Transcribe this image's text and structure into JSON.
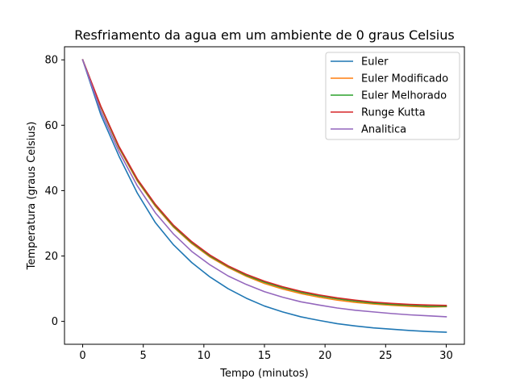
{
  "chart_data": {
    "type": "line",
    "title": "Resfriamento da agua em um ambiente de 0 graus Celsius",
    "xlabel": "Tempo (minutos)",
    "ylabel": "Temperatura (graus Celsius)",
    "xlim": [
      -1.5,
      31.5
    ],
    "ylim": [
      -7,
      84
    ],
    "xticks": [
      0,
      5,
      10,
      15,
      20,
      25,
      30
    ],
    "yticks": [
      0,
      20,
      40,
      60,
      80
    ],
    "grid": false,
    "legend_position": "top-right",
    "x": [
      0,
      1.5,
      3,
      4.5,
      6,
      7.5,
      9,
      10.5,
      12,
      13.5,
      15,
      16.5,
      18,
      19.5,
      21,
      22.5,
      24,
      25.5,
      27,
      28.5,
      30
    ],
    "series": [
      {
        "name": "Euler",
        "color": "#1f77b4",
        "values": [
          80,
          63.2,
          50.5,
          39.3,
          30.2,
          23.4,
          18.0,
          13.6,
          10.0,
          7.1,
          4.7,
          2.9,
          1.4,
          0.3,
          -0.7,
          -1.4,
          -2.0,
          -2.4,
          -2.8,
          -3.1,
          -3.3
        ]
      },
      {
        "name": "Euler Modificado",
        "color": "#ff7f0e",
        "values": [
          80,
          65.5,
          53.0,
          43.0,
          35.2,
          28.8,
          23.8,
          19.7,
          16.5,
          13.8,
          11.6,
          9.9,
          8.5,
          7.4,
          6.5,
          5.8,
          5.3,
          4.9,
          4.6,
          4.4,
          4.5
        ]
      },
      {
        "name": "Euler Melhorado",
        "color": "#2ca02c",
        "values": [
          80,
          65.6,
          53.2,
          43.3,
          35.5,
          29.1,
          24.1,
          20.0,
          16.8,
          14.1,
          12.0,
          10.3,
          8.9,
          7.8,
          6.9,
          6.2,
          5.6,
          5.2,
          4.9,
          4.6,
          4.6
        ]
      },
      {
        "name": "Runge Kutta",
        "color": "#d62728",
        "values": [
          80,
          65.8,
          53.5,
          43.6,
          35.8,
          29.4,
          24.4,
          20.3,
          17.0,
          14.4,
          12.3,
          10.6,
          9.2,
          8.1,
          7.2,
          6.5,
          5.9,
          5.5,
          5.2,
          5.0,
          4.9
        ]
      },
      {
        "name": "Analitica",
        "color": "#9467bd",
        "values": [
          80,
          64.3,
          51.9,
          41.5,
          33.2,
          26.7,
          21.4,
          17.3,
          13.9,
          11.3,
          9.1,
          7.4,
          6.0,
          5.0,
          4.1,
          3.4,
          2.9,
          2.4,
          2.0,
          1.7,
          1.4
        ]
      }
    ]
  }
}
